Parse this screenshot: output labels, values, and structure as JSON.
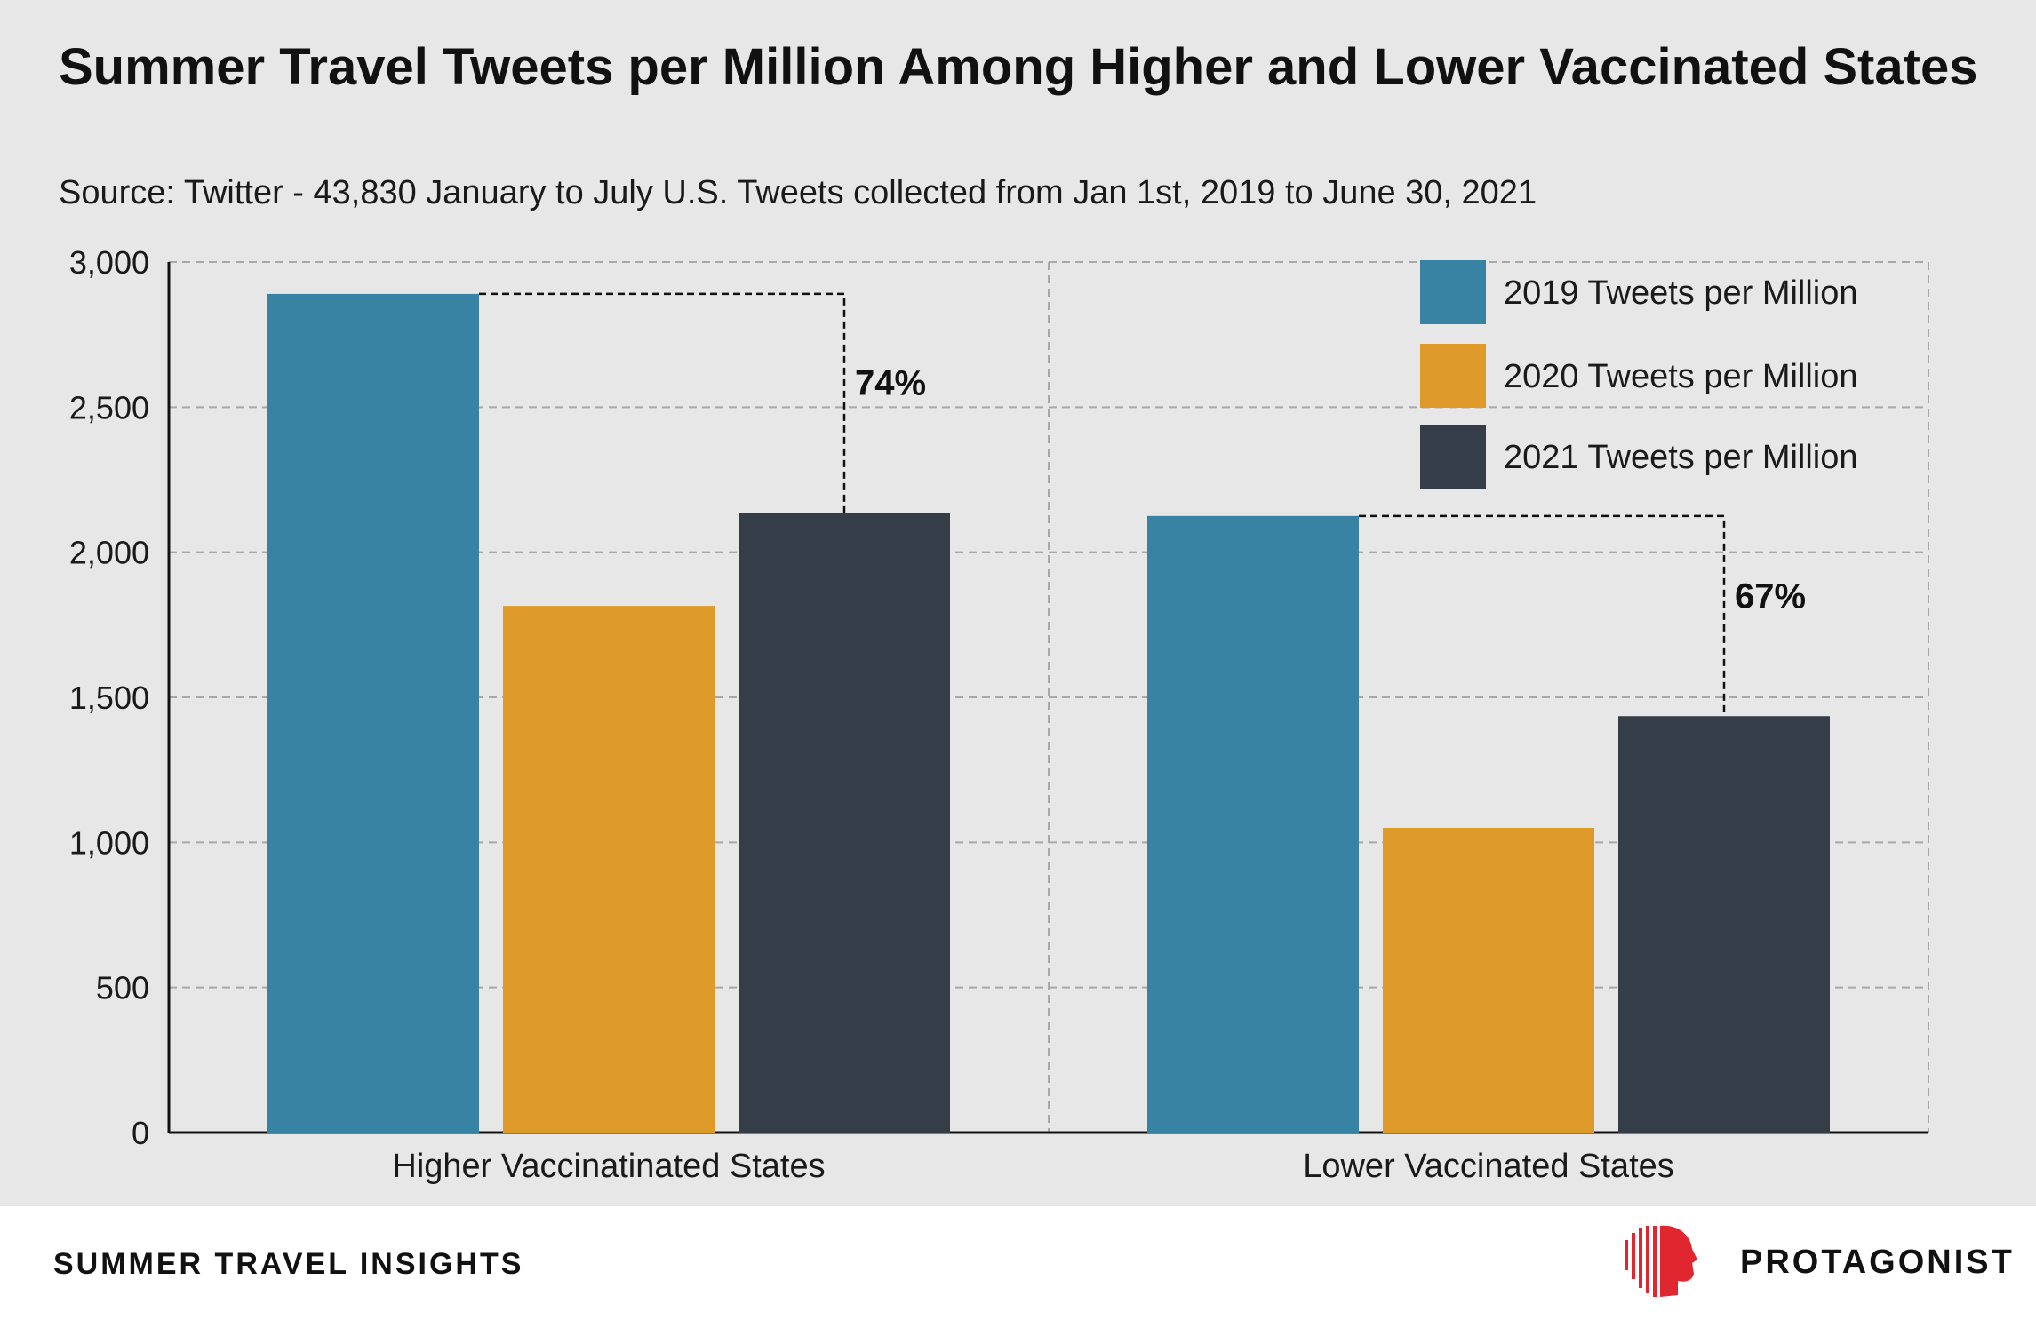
{
  "header": {
    "title": "Summer Travel Tweets per Million Among Higher and Lower Vaccinated States",
    "subtitle": "Source: Twitter - 43,830 January to July U.S. Tweets collected from Jan 1st, 2019 to June 30, 2021"
  },
  "chart_data": {
    "type": "bar",
    "categories": [
      "Higher Vaccinatinated States",
      "Lower Vaccinated States"
    ],
    "series": [
      {
        "name": "2019 Tweets per Million",
        "values": [
          2890,
          2125
        ],
        "color": "#3883a3"
      },
      {
        "name": "2020 Tweets per Million",
        "values": [
          1815,
          1050
        ],
        "color": "#de9b29"
      },
      {
        "name": "2021 Tweets per Million",
        "values": [
          2135,
          1435
        ],
        "color": "#353e48"
      }
    ],
    "ylim": [
      0,
      3000
    ],
    "yticks": [
      0,
      500,
      1000,
      1500,
      2000,
      2500,
      3000
    ],
    "ytick_labels": [
      "0",
      "500",
      "1,000",
      "1,500",
      "2,000",
      "2,500",
      "3,000"
    ],
    "annotations": [
      "74%",
      "67%"
    ],
    "grid": true,
    "legend": "top-right",
    "xlabel": "",
    "ylabel": ""
  },
  "footer": {
    "title": "SUMMER TRAVEL INSIGHTS",
    "brand": "PROTAGONIST",
    "brand_color": "#e0262e"
  }
}
